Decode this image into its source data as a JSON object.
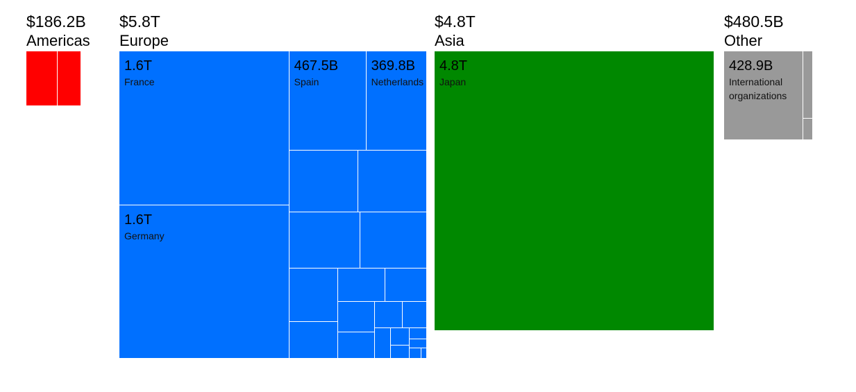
{
  "chart_data": {
    "type": "treemap",
    "groups": [
      {
        "name": "Americas",
        "value": 186.2,
        "value_label": "$186.2B",
        "color": "#ff0000",
        "children": [
          {
            "name": null,
            "value": 105,
            "value_label": null
          },
          {
            "name": null,
            "value": 81.2,
            "value_label": null
          }
        ]
      },
      {
        "name": "Europe",
        "value": 5800,
        "value_label": "$5.8T",
        "color": "#0070ff",
        "children": [
          {
            "name": "France",
            "value": 1600,
            "value_label": "1.6T"
          },
          {
            "name": "Germany",
            "value": 1600,
            "value_label": "1.6T"
          },
          {
            "name": "Spain",
            "value": 467.5,
            "value_label": "467.5B"
          },
          {
            "name": "Netherlands",
            "value": 369.8,
            "value_label": "369.8B"
          },
          {
            "name": null,
            "value": 261,
            "value_label": null
          },
          {
            "name": null,
            "value": 261,
            "value_label": null
          },
          {
            "name": null,
            "value": 245,
            "value_label": null
          },
          {
            "name": null,
            "value": 232,
            "value_label": null
          },
          {
            "name": null,
            "value": 160,
            "value_label": null
          },
          {
            "name": null,
            "value": 110,
            "value_label": null
          },
          {
            "name": null,
            "value": 95,
            "value_label": null
          },
          {
            "name": null,
            "value": 85,
            "value_label": null
          },
          {
            "name": null,
            "value": 70,
            "value_label": null
          },
          {
            "name": null,
            "value": 60,
            "value_label": null
          },
          {
            "name": null,
            "value": 45,
            "value_label": null
          },
          {
            "name": null,
            "value": 40,
            "value_label": null
          },
          {
            "name": null,
            "value": 30,
            "value_label": null
          },
          {
            "name": null,
            "value": 20,
            "value_label": null
          },
          {
            "name": null,
            "value": 15,
            "value_label": null
          },
          {
            "name": null,
            "value": 12,
            "value_label": null
          },
          {
            "name": null,
            "value": 10,
            "value_label": null
          },
          {
            "name": null,
            "value": 7.7,
            "value_label": null
          },
          {
            "name": null,
            "value": 4,
            "value_label": null
          }
        ]
      },
      {
        "name": "Asia",
        "value": 4800,
        "value_label": "$4.8T",
        "color": "#008800",
        "children": [
          {
            "name": "Japan",
            "value": 4800,
            "value_label": "4.8T"
          }
        ]
      },
      {
        "name": "Other",
        "value": 480.5,
        "value_label": "$480.5B",
        "color": "#999999",
        "children": [
          {
            "name": "International organizations",
            "value": 428.9,
            "value_label": "428.9B"
          },
          {
            "name": null,
            "value": 39.4,
            "value_label": null
          },
          {
            "name": null,
            "value": 12.2,
            "value_label": null
          }
        ]
      }
    ]
  }
}
